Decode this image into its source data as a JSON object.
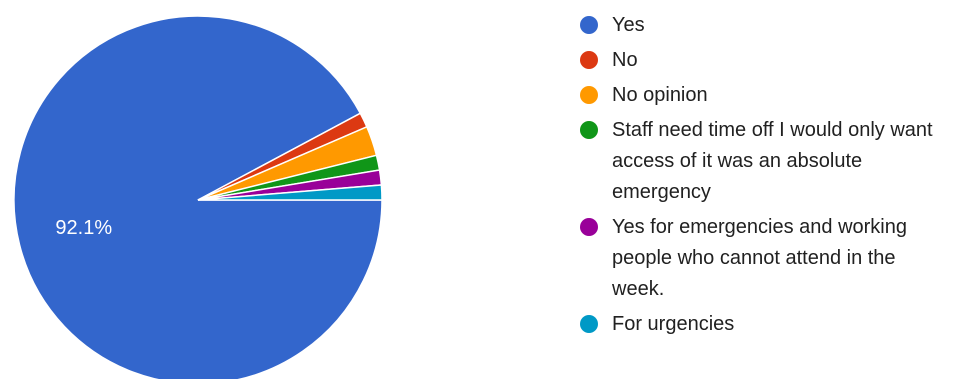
{
  "chart_data": {
    "type": "pie",
    "title": "",
    "slices": [
      {
        "label": "Yes",
        "value": 92.1,
        "color": "#3366cc",
        "data_label": "92.1%"
      },
      {
        "label": "No",
        "value": 1.3,
        "color": "#dc3912",
        "data_label": ""
      },
      {
        "label": "No opinion",
        "value": 2.6,
        "color": "#ff9900",
        "data_label": ""
      },
      {
        "label": "Staff need time off I would only want access of it was an absolute emergency",
        "value": 1.3,
        "color": "#109618",
        "data_label": ""
      },
      {
        "label": "Yes for emergencies and working people who cannot attend in the week.",
        "value": 1.3,
        "color": "#990099",
        "data_label": ""
      },
      {
        "label": "For urgencies",
        "value": 1.3,
        "color": "#0099c6",
        "data_label": ""
      }
    ],
    "legend_position": "right"
  }
}
